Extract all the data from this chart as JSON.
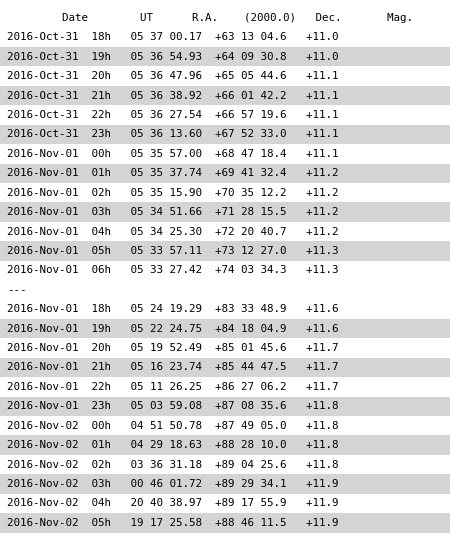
{
  "header": "    Date        UT      R.A.    (2000.0)   Dec.       Mag.",
  "rows": [
    {
      "text": "2016-Oct-31  18h   05 37 00.17  +63 13 04.6   +11.0",
      "shade": false
    },
    {
      "text": "2016-Oct-31  19h   05 36 54.93  +64 09 30.8   +11.0",
      "shade": true
    },
    {
      "text": "2016-Oct-31  20h   05 36 47.96  +65 05 44.6   +11.1",
      "shade": false
    },
    {
      "text": "2016-Oct-31  21h   05 36 38.92  +66 01 42.2   +11.1",
      "shade": true
    },
    {
      "text": "2016-Oct-31  22h   05 36 27.54  +66 57 19.6   +11.1",
      "shade": false
    },
    {
      "text": "2016-Oct-31  23h   05 36 13.60  +67 52 33.0   +11.1",
      "shade": true
    },
    {
      "text": "2016-Nov-01  00h   05 35 57.00  +68 47 18.4   +11.1",
      "shade": false
    },
    {
      "text": "2016-Nov-01  01h   05 35 37.74  +69 41 32.4   +11.2",
      "shade": true
    },
    {
      "text": "2016-Nov-01  02h   05 35 15.90  +70 35 12.2   +11.2",
      "shade": false
    },
    {
      "text": "2016-Nov-01  03h   05 34 51.66  +71 28 15.5   +11.2",
      "shade": true
    },
    {
      "text": "2016-Nov-01  04h   05 34 25.30  +72 20 40.7   +11.2",
      "shade": false
    },
    {
      "text": "2016-Nov-01  05h   05 33 57.11  +73 12 27.0   +11.3",
      "shade": true
    },
    {
      "text": "2016-Nov-01  06h   05 33 27.42  +74 03 34.3   +11.3",
      "shade": false
    },
    {
      "text": "---",
      "shade": false,
      "separator": true
    },
    {
      "text": "2016-Nov-01  18h   05 24 19.29  +83 33 48.9   +11.6",
      "shade": false
    },
    {
      "text": "2016-Nov-01  19h   05 22 24.75  +84 18 04.9   +11.6",
      "shade": true
    },
    {
      "text": "2016-Nov-01  20h   05 19 52.49  +85 01 45.6   +11.7",
      "shade": false
    },
    {
      "text": "2016-Nov-01  21h   05 16 23.74  +85 44 47.5   +11.7",
      "shade": true
    },
    {
      "text": "2016-Nov-01  22h   05 11 26.25  +86 27 06.2   +11.7",
      "shade": false
    },
    {
      "text": "2016-Nov-01  23h   05 03 59.08  +87 08 35.6   +11.8",
      "shade": true
    },
    {
      "text": "2016-Nov-02  00h   04 51 50.78  +87 49 05.0   +11.8",
      "shade": false
    },
    {
      "text": "2016-Nov-02  01h   04 29 18.63  +88 28 10.0   +11.8",
      "shade": true
    },
    {
      "text": "2016-Nov-02  02h   03 36 31.18  +89 04 25.6   +11.8",
      "shade": false
    },
    {
      "text": "2016-Nov-02  03h   00 46 01.72  +89 29 34.1   +11.9",
      "shade": true
    },
    {
      "text": "2016-Nov-02  04h   20 40 38.97  +89 17 55.9   +11.9",
      "shade": false
    },
    {
      "text": "2016-Nov-02  05h   19 17 25.58  +88 46 11.5   +11.9",
      "shade": true
    }
  ],
  "bg_color_shade": "#d4d4d4",
  "bg_color_plain": "#ffffff",
  "font_color": "#000000",
  "font_size": 7.8,
  "font_family": "monospace",
  "fig_width": 4.5,
  "fig_height": 5.45,
  "dpi": 100
}
